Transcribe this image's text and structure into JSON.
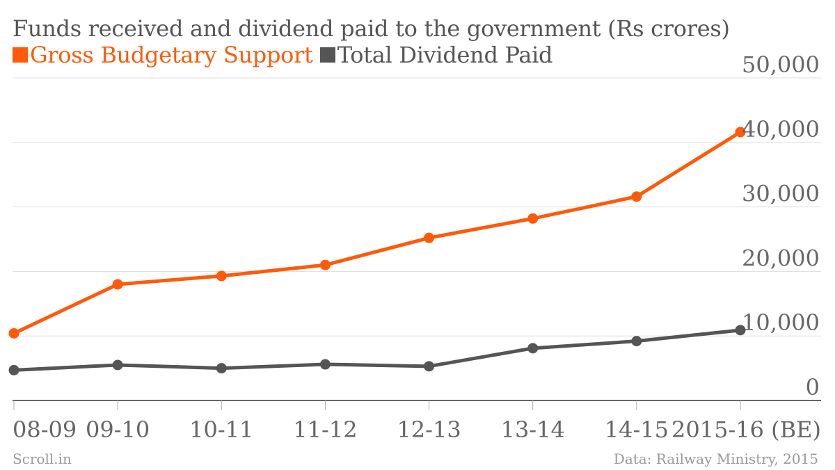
{
  "chart_data": {
    "type": "line",
    "title": "Funds received and dividend paid to the government (Rs crores)",
    "categories": [
      "08-09",
      "09-10",
      "10-11",
      "11-12",
      "12-13",
      "13-14",
      "14-15",
      "2015-16 (BE)"
    ],
    "series": [
      {
        "name": "Gross Budgetary Support",
        "color": "#fe5a0a",
        "values": [
          10400,
          18000,
          19300,
          21000,
          25200,
          28200,
          31600,
          41600
        ]
      },
      {
        "name": "Total Dividend Paid",
        "color": "#555555",
        "values": [
          4700,
          5500,
          5000,
          5600,
          5300,
          8100,
          9200,
          10900
        ]
      }
    ],
    "ylim": [
      0,
      50000
    ],
    "yticks": [
      "0",
      "10,000",
      "20,000",
      "30,000",
      "40,000",
      "50,000"
    ],
    "ytick_values": [
      0,
      10000,
      20000,
      30000,
      40000,
      50000
    ],
    "y_axis_position": "right",
    "grid": true,
    "legend_position": "top-left"
  },
  "footer": {
    "source_left": "Scroll.in",
    "source_right": "Data: Railway Ministry, 2015"
  }
}
